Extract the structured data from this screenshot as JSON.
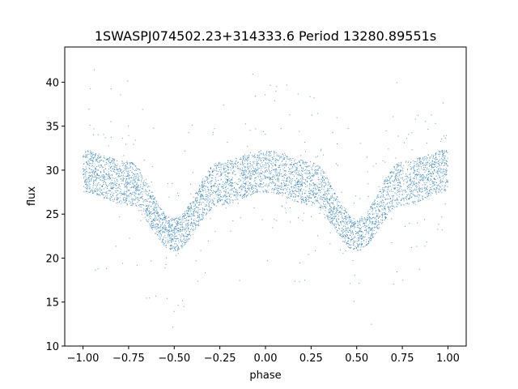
{
  "chart_data": {
    "type": "scatter",
    "title": "1SWASPJ074502.23+314333.6 Period 13280.89551s",
    "xlabel": "phase",
    "ylabel": "flux",
    "xlim": [
      -1.1,
      1.1
    ],
    "ylim": [
      10,
      44
    ],
    "grid": false,
    "legend": "none",
    "point_color": "#1f77b4",
    "x_ticks": [
      -1.0,
      -0.75,
      -0.5,
      -0.25,
      0.0,
      0.25,
      0.5,
      0.75,
      1.0
    ],
    "x_tick_labels": [
      "−1.00",
      "−0.75",
      "−0.50",
      "−0.25",
      "0.00",
      "0.25",
      "0.50",
      "0.75",
      "1.00"
    ],
    "y_ticks": [
      10,
      15,
      20,
      25,
      30,
      35,
      40
    ],
    "y_tick_labels": [
      "10",
      "15",
      "20",
      "25",
      "30",
      "35",
      "40"
    ],
    "phase_range": [
      -1.0,
      1.0
    ],
    "envelope": {
      "phase": [
        -1.0,
        -0.75,
        -0.5,
        -0.25,
        0.0,
        0.25,
        0.5,
        0.75,
        1.0
      ],
      "upper": [
        32.3,
        31.0,
        24.5,
        31.0,
        32.3,
        31.0,
        24.5,
        31.0,
        32.3
      ],
      "lower": [
        27.5,
        26.0,
        20.8,
        26.0,
        27.5,
        26.0,
        20.8,
        26.0,
        27.5
      ]
    },
    "outlier_range": [
      11,
      43
    ]
  }
}
